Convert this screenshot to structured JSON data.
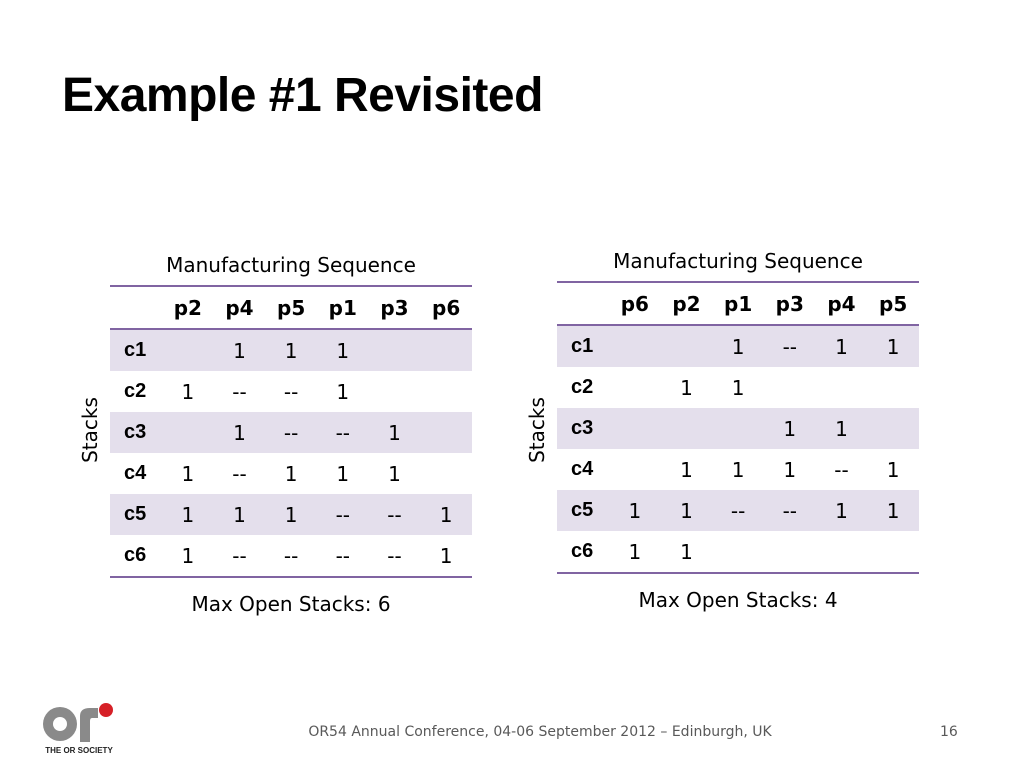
{
  "title": "Example #1 Revisited",
  "tables": [
    {
      "sequence_label": "Manufacturing Sequence",
      "axis_label": "Stacks",
      "columns": [
        "p2",
        "p4",
        "p5",
        "p1",
        "p3",
        "p6"
      ],
      "rows": [
        {
          "label": "c1",
          "cells": [
            "",
            "1",
            "1",
            "1",
            "",
            ""
          ]
        },
        {
          "label": "c2",
          "cells": [
            "1",
            "--",
            "--",
            "1",
            "",
            ""
          ]
        },
        {
          "label": "c3",
          "cells": [
            "",
            "1",
            "--",
            "--",
            "1",
            ""
          ]
        },
        {
          "label": "c4",
          "cells": [
            "1",
            "--",
            "1",
            "1",
            "1",
            ""
          ]
        },
        {
          "label": "c5",
          "cells": [
            "1",
            "1",
            "1",
            "--",
            "--",
            "1"
          ]
        },
        {
          "label": "c6",
          "cells": [
            "1",
            "--",
            "--",
            "--",
            "--",
            "1"
          ]
        }
      ],
      "result": "Max Open Stacks: 6"
    },
    {
      "sequence_label": "Manufacturing Sequence",
      "axis_label": "Stacks",
      "columns": [
        "p6",
        "p2",
        "p1",
        "p3",
        "p4",
        "p5"
      ],
      "rows": [
        {
          "label": "c1",
          "cells": [
            "",
            "",
            "1",
            "--",
            "1",
            "1"
          ]
        },
        {
          "label": "c2",
          "cells": [
            "",
            "1",
            "1",
            "",
            "",
            ""
          ]
        },
        {
          "label": "c3",
          "cells": [
            "",
            "",
            "",
            "1",
            "1",
            ""
          ]
        },
        {
          "label": "c4",
          "cells": [
            "",
            "1",
            "1",
            "1",
            "--",
            "1"
          ]
        },
        {
          "label": "c5",
          "cells": [
            "1",
            "1",
            "--",
            "--",
            "1",
            "1"
          ]
        },
        {
          "label": "c6",
          "cells": [
            "1",
            "1",
            "",
            "",
            "",
            ""
          ]
        }
      ],
      "result": "Max Open Stacks: 4"
    }
  ],
  "footer": {
    "conference": "OR54 Annual Conference, 04-06 September 2012 – Edinburgh, UK",
    "page_number": "16"
  },
  "logo": {
    "caption": "THE OR SOCIETY",
    "icon": "or-society-logo"
  },
  "colors": {
    "accent": "#8064a2",
    "row_shade": "#e4dfec"
  }
}
